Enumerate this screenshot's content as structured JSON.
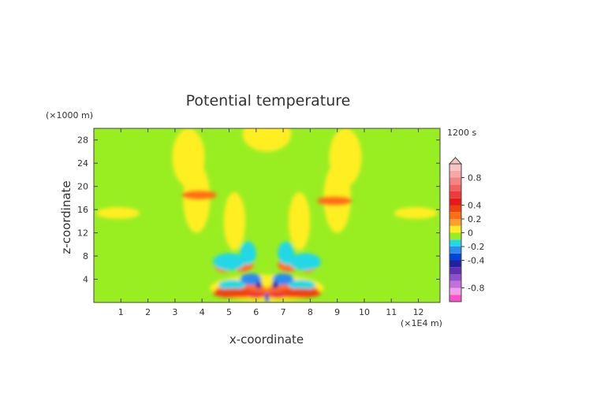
{
  "chart_data": {
    "type": "heatmap",
    "title": "Potential temperature",
    "xlabel": "x-coordinate",
    "ylabel": "z-coordinate",
    "x_unit": "(×1E4 m)",
    "z_unit": "(×1000 m)",
    "time_label": "1200 s",
    "xlim": [
      0,
      12.8
    ],
    "ylim": [
      0,
      30
    ],
    "x_ticks": [
      "1",
      "2",
      "3",
      "4",
      "5",
      "6",
      "7",
      "8",
      "9",
      "10",
      "11",
      "12"
    ],
    "y_ticks": [
      "4",
      "8",
      "12",
      "16",
      "20",
      "24",
      "28"
    ],
    "x_tick_values": [
      1,
      2,
      3,
      4,
      5,
      6,
      7,
      8,
      9,
      10,
      11,
      12
    ],
    "y_tick_values": [
      4,
      8,
      12,
      16,
      20,
      24,
      28
    ],
    "colorbar": {
      "range": [
        -1,
        1
      ],
      "tick_labels": [
        "0.8",
        "0.4",
        "0.2",
        "0",
        "-0.2",
        "-0.4",
        "-0.8"
      ],
      "tick_values": [
        0.8,
        0.4,
        0.2,
        0,
        -0.2,
        -0.4,
        -0.8
      ],
      "levels": [
        {
          "from": -1.0,
          "to": -0.9,
          "color": "#ff4fc8"
        },
        {
          "from": -0.9,
          "to": -0.8,
          "color": "#f0a0e8"
        },
        {
          "from": -0.8,
          "to": -0.7,
          "color": "#c070d8"
        },
        {
          "from": -0.7,
          "to": -0.6,
          "color": "#9050c8"
        },
        {
          "from": -0.6,
          "to": -0.5,
          "color": "#6030b0"
        },
        {
          "from": -0.5,
          "to": -0.4,
          "color": "#2020a0"
        },
        {
          "from": -0.4,
          "to": -0.3,
          "color": "#0044d8"
        },
        {
          "from": -0.3,
          "to": -0.2,
          "color": "#2c8cf0"
        },
        {
          "from": -0.2,
          "to": -0.1,
          "color": "#22d8e6"
        },
        {
          "from": -0.1,
          "to": 0.0,
          "color": "#99ee22"
        },
        {
          "from": 0.0,
          "to": 0.1,
          "color": "#ffee22"
        },
        {
          "from": 0.1,
          "to": 0.2,
          "color": "#ff9e2e"
        },
        {
          "from": 0.2,
          "to": 0.3,
          "color": "#ff6e14"
        },
        {
          "from": 0.3,
          "to": 0.4,
          "color": "#f04010"
        },
        {
          "from": 0.4,
          "to": 0.5,
          "color": "#e81818"
        },
        {
          "from": 0.5,
          "to": 0.6,
          "color": "#ee3a3a"
        },
        {
          "from": 0.6,
          "to": 0.7,
          "color": "#f26060"
        },
        {
          "from": 0.7,
          "to": 0.8,
          "color": "#f48484"
        },
        {
          "from": 0.8,
          "to": 0.9,
          "color": "#f6a8a8"
        },
        {
          "from": 0.9,
          "to": 1.0,
          "color": "#f8c4c4"
        }
      ]
    },
    "field_regions": [
      {
        "x": 3.5,
        "z": 25,
        "rx": 0.6,
        "rz": 5,
        "value": 0.05
      },
      {
        "x": 9.3,
        "z": 25,
        "rx": 0.6,
        "rz": 5,
        "value": 0.05
      },
      {
        "x": 6.4,
        "z": 29,
        "rx": 0.9,
        "rz": 3,
        "value": 0.05
      },
      {
        "x": 3.8,
        "z": 18,
        "rx": 0.5,
        "rz": 6,
        "value": 0.05
      },
      {
        "x": 9.0,
        "z": 18,
        "rx": 0.5,
        "rz": 6,
        "value": 0.05
      },
      {
        "x": 5.2,
        "z": 14,
        "rx": 0.4,
        "rz": 5,
        "value": 0.05
      },
      {
        "x": 7.6,
        "z": 14,
        "rx": 0.4,
        "rz": 5,
        "value": 0.05
      },
      {
        "x": 0.9,
        "z": 15.4,
        "rx": 0.8,
        "rz": 1.0,
        "value": 0.05
      },
      {
        "x": 11.9,
        "z": 15.4,
        "rx": 0.8,
        "rz": 1.0,
        "value": 0.05
      },
      {
        "x": 6.4,
        "z": 2.5,
        "rx": 2.1,
        "rz": 2.3,
        "value": 0.05
      },
      {
        "x": 3.9,
        "z": 18.5,
        "rx": 0.65,
        "rz": 0.8,
        "value": 0.25
      },
      {
        "x": 8.9,
        "z": 17.5,
        "rx": 0.65,
        "rz": 0.8,
        "value": 0.25
      },
      {
        "x": 5.5,
        "z": 2.0,
        "rx": 1.0,
        "rz": 1.2,
        "value": 0.25
      },
      {
        "x": 7.3,
        "z": 2.0,
        "rx": 1.0,
        "rz": 1.2,
        "value": 0.25
      },
      {
        "x": 5.5,
        "z": 6.5,
        "rx": 0.4,
        "rz": 1.2,
        "value": 0.25
      },
      {
        "x": 7.2,
        "z": 6.5,
        "rx": 0.4,
        "rz": 1.2,
        "value": 0.25
      },
      {
        "x": 4.8,
        "z": 6.5,
        "rx": 0.35,
        "rz": 1.3,
        "value": 0.25
      },
      {
        "x": 7.9,
        "z": 6.5,
        "rx": 0.35,
        "rz": 1.3,
        "value": 0.25
      },
      {
        "x": 5.0,
        "z": 7.0,
        "rx": 0.6,
        "rz": 1.5,
        "value": -0.15
      },
      {
        "x": 7.8,
        "z": 7.0,
        "rx": 0.6,
        "rz": 1.5,
        "value": -0.15
      },
      {
        "x": 5.7,
        "z": 8.5,
        "rx": 0.3,
        "rz": 2.0,
        "value": -0.15
      },
      {
        "x": 7.1,
        "z": 8.5,
        "rx": 0.3,
        "rz": 2.0,
        "value": -0.15
      },
      {
        "x": 5.8,
        "z": 4.0,
        "rx": 0.4,
        "rz": 1.0,
        "value": -0.25
      },
      {
        "x": 7.0,
        "z": 4.0,
        "rx": 0.4,
        "rz": 1.0,
        "value": -0.25
      },
      {
        "x": 5.1,
        "z": 3.0,
        "rx": 0.5,
        "rz": 0.9,
        "value": -0.15
      },
      {
        "x": 7.7,
        "z": 3.0,
        "rx": 0.5,
        "rz": 0.9,
        "value": -0.15
      },
      {
        "x": 5.2,
        "z": 1.6,
        "rx": 0.8,
        "rz": 0.8,
        "value": 0.35
      },
      {
        "x": 7.6,
        "z": 1.6,
        "rx": 0.8,
        "rz": 0.8,
        "value": 0.35
      },
      {
        "x": 6.0,
        "z": 1.3,
        "rx": 0.35,
        "rz": 0.6,
        "value": 0.55
      },
      {
        "x": 6.8,
        "z": 1.3,
        "rx": 0.35,
        "rz": 0.6,
        "value": 0.55
      },
      {
        "x": 6.1,
        "z": 3.0,
        "rx": 0.12,
        "rz": 0.6,
        "value": -0.45
      },
      {
        "x": 6.7,
        "z": 3.0,
        "rx": 0.12,
        "rz": 0.6,
        "value": -0.45
      },
      {
        "x": 6.4,
        "z": 3.5,
        "rx": 0.1,
        "rz": 1.1,
        "value": 0.05
      },
      {
        "x": 6.4,
        "z": 0.8,
        "rx": 0.08,
        "rz": 0.8,
        "value": -0.35
      }
    ]
  }
}
